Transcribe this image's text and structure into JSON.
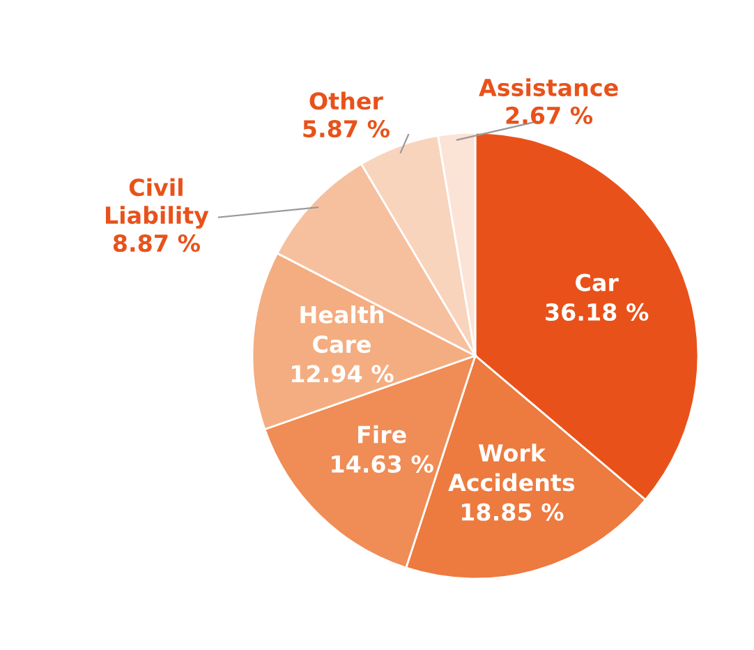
{
  "chart_data": {
    "type": "pie",
    "categories": [
      "Car",
      "Work Accidents",
      "Fire",
      "Health Care",
      "Civil Liability",
      "Other",
      "Assistance"
    ],
    "values": [
      36.18,
      18.85,
      14.63,
      12.94,
      8.87,
      5.87,
      2.67
    ],
    "value_labels": [
      "36.18 %",
      "18.85 %",
      "14.63 %",
      "12.94 %",
      "8.87 %",
      "5.87 %",
      "2.67 %"
    ],
    "colors": [
      "#e8521a",
      "#ed7a3f",
      "#f08c55",
      "#f4ad80",
      "#f6c09f",
      "#f8d4bc",
      "#fbe3d6"
    ]
  }
}
